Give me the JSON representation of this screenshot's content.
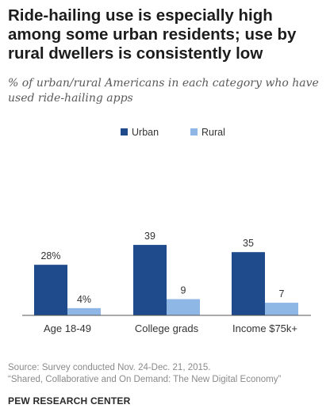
{
  "title": "Ride-hailing use is especially high among some urban residents; use by rural dwellers is consistently low",
  "subtitle": "% of urban/rural Americans in each category who have used ride-hailing apps",
  "source": {
    "line1": "Source: Survey conducted Nov. 24-Dec. 21, 2015.",
    "line2": "“Shared, Collaborative and On Demand: The New Digital Economy”"
  },
  "footer": "PEW RESEARCH CENTER",
  "colors": {
    "urban": "#1f4a8c",
    "rural": "#8fb7e6",
    "axis": "#555555",
    "text": "#333333"
  },
  "chart_data": {
    "type": "bar",
    "categories": [
      "Age 18-49",
      "College grads",
      "Income $75k+"
    ],
    "series": [
      {
        "name": "Urban",
        "values": [
          28,
          39,
          35
        ],
        "labels": [
          "28%",
          "39",
          "35"
        ]
      },
      {
        "name": "Rural",
        "values": [
          4,
          9,
          7
        ],
        "labels": [
          "4%",
          "9",
          "7"
        ]
      }
    ],
    "ylim": [
      0,
      39
    ],
    "grid": false,
    "legend": "top-center"
  }
}
